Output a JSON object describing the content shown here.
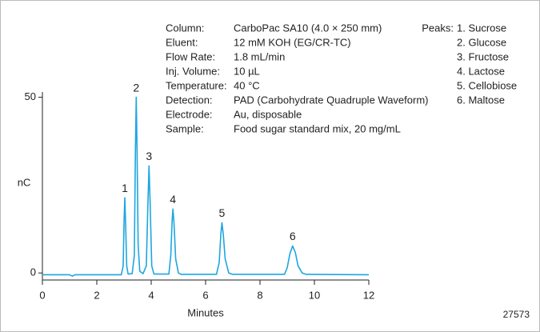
{
  "chart_data": {
    "type": "line",
    "x": [
      0,
      1.0,
      1.1,
      1.2,
      2.9,
      2.97,
      3.0,
      3.03,
      3.06,
      3.1,
      3.15,
      3.3,
      3.38,
      3.42,
      3.45,
      3.48,
      3.52,
      3.58,
      3.7,
      3.82,
      3.88,
      3.92,
      3.96,
      4.02,
      4.1,
      4.65,
      4.72,
      4.77,
      4.8,
      4.84,
      4.9,
      5.0,
      5.1,
      6.4,
      6.5,
      6.56,
      6.6,
      6.65,
      6.72,
      6.85,
      7.0,
      8.9,
      9.0,
      9.1,
      9.2,
      9.3,
      9.4,
      9.55,
      9.7,
      12
    ],
    "values": [
      -0.5,
      -0.5,
      -0.9,
      -0.5,
      -0.5,
      2,
      14,
      21.4,
      14,
      2,
      -0.3,
      -0.2,
      5,
      35,
      50,
      35,
      8,
      0.5,
      -0.2,
      2,
      20,
      30.5,
      20,
      2,
      -0.3,
      -0.3,
      5,
      15,
      18.2,
      14,
      4,
      0,
      -0.4,
      -0.4,
      3,
      11,
      14.3,
      11,
      4,
      0,
      -0.4,
      -0.4,
      1.5,
      5.5,
      7.7,
      5.8,
      2,
      0,
      -0.4,
      -0.5
    ],
    "color": "#1ea6e0",
    "xlim": [
      0,
      12
    ],
    "xticks": [
      0,
      2,
      4,
      6,
      8,
      10,
      12
    ],
    "ylim": [
      -2,
      51.5
    ],
    "yticks": [
      0,
      50
    ],
    "xlabel": "Minutes",
    "ylabel": "nC",
    "annotations": [
      {
        "text": "1",
        "x": 3.03,
        "y": 21.4
      },
      {
        "text": "2",
        "x": 3.45,
        "y": 50
      },
      {
        "text": "3",
        "x": 3.92,
        "y": 30.5
      },
      {
        "text": "4",
        "x": 4.8,
        "y": 18.2
      },
      {
        "text": "5",
        "x": 6.6,
        "y": 14.3
      },
      {
        "text": "6",
        "x": 9.2,
        "y": 7.7
      }
    ],
    "conditions": [
      [
        "Column:",
        "CarboPac SA10 (4.0 × 250 mm)"
      ],
      [
        "Eluent:",
        "12 mM KOH (EG/CR-TC)"
      ],
      [
        "Flow Rate:",
        "1.8 mL/min"
      ],
      [
        "Inj. Volume:",
        "10 µL"
      ],
      [
        "Temperature:",
        "40 °C"
      ],
      [
        "Detection:",
        "PAD (Carbohydrate Quadruple Waveform)"
      ],
      [
        "Electrode:",
        "Au, disposable"
      ],
      [
        "Sample:",
        "Food sugar standard mix, 20 mg/mL"
      ]
    ],
    "peaks_label": "Peaks:",
    "peaks": [
      "1. Sucrose",
      "2. Glucose",
      "3. Fructose",
      "4. Lactose",
      "5. Cellobiose",
      "6. Maltose"
    ],
    "figure_id": "27573"
  }
}
